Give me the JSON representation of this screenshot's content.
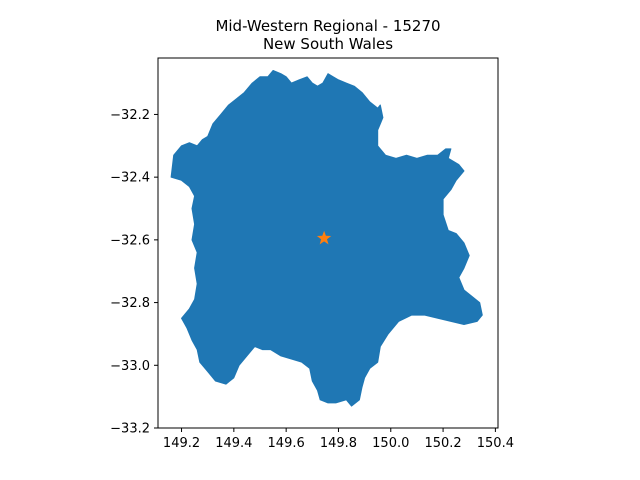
{
  "title": {
    "line1": "Mid-Western Regional - 15270",
    "line2": "New South Wales"
  },
  "colors": {
    "region_fill": "#1f77b4",
    "centroid_marker": "#ff7f0e",
    "axes": "#000000"
  },
  "map": {
    "x_ticks": [
      "149.2",
      "149.4",
      "149.6",
      "149.8",
      "150.0",
      "150.2",
      "150.4"
    ],
    "y_ticks": [
      "−32.2",
      "−32.4",
      "−32.6",
      "−32.8",
      "−33.0",
      "−33.2"
    ],
    "xlim": [
      149.11,
      150.41
    ],
    "ylim": [
      -33.2,
      -32.02
    ],
    "centroid": {
      "lon": 149.745,
      "lat": -32.595,
      "marker": "star"
    },
    "boundary": [
      [
        149.16,
        -32.4
      ],
      [
        149.17,
        -32.33
      ],
      [
        149.2,
        -32.3
      ],
      [
        149.23,
        -32.29
      ],
      [
        149.26,
        -32.3
      ],
      [
        149.28,
        -32.28
      ],
      [
        149.3,
        -32.27
      ],
      [
        149.32,
        -32.23
      ],
      [
        149.35,
        -32.2
      ],
      [
        149.38,
        -32.17
      ],
      [
        149.41,
        -32.15
      ],
      [
        149.44,
        -32.13
      ],
      [
        149.47,
        -32.1
      ],
      [
        149.5,
        -32.08
      ],
      [
        149.53,
        -32.08
      ],
      [
        149.55,
        -32.06
      ],
      [
        149.58,
        -32.07
      ],
      [
        149.6,
        -32.08
      ],
      [
        149.62,
        -32.1
      ],
      [
        149.65,
        -32.09
      ],
      [
        149.68,
        -32.08
      ],
      [
        149.7,
        -32.1
      ],
      [
        149.72,
        -32.11
      ],
      [
        149.74,
        -32.1
      ],
      [
        149.76,
        -32.07
      ],
      [
        149.78,
        -32.08
      ],
      [
        149.8,
        -32.09
      ],
      [
        149.83,
        -32.1
      ],
      [
        149.86,
        -32.11
      ],
      [
        149.89,
        -32.13
      ],
      [
        149.92,
        -32.16
      ],
      [
        149.95,
        -32.18
      ],
      [
        149.96,
        -32.17
      ],
      [
        149.97,
        -32.21
      ],
      [
        149.95,
        -32.25
      ],
      [
        149.95,
        -32.3
      ],
      [
        149.98,
        -32.33
      ],
      [
        150.02,
        -32.34
      ],
      [
        150.06,
        -32.33
      ],
      [
        150.1,
        -32.34
      ],
      [
        150.14,
        -32.33
      ],
      [
        150.18,
        -32.33
      ],
      [
        150.21,
        -32.31
      ],
      [
        150.23,
        -32.31
      ],
      [
        150.22,
        -32.34
      ],
      [
        150.26,
        -32.36
      ],
      [
        150.28,
        -32.38
      ],
      [
        150.25,
        -32.41
      ],
      [
        150.23,
        -32.44
      ],
      [
        150.2,
        -32.47
      ],
      [
        150.2,
        -32.52
      ],
      [
        150.22,
        -32.57
      ],
      [
        150.25,
        -32.58
      ],
      [
        150.28,
        -32.61
      ],
      [
        150.3,
        -32.65
      ],
      [
        150.28,
        -32.69
      ],
      [
        150.26,
        -32.72
      ],
      [
        150.28,
        -32.76
      ],
      [
        150.31,
        -32.78
      ],
      [
        150.34,
        -32.8
      ],
      [
        150.35,
        -32.84
      ],
      [
        150.33,
        -32.86
      ],
      [
        150.28,
        -32.87
      ],
      [
        150.23,
        -32.86
      ],
      [
        150.18,
        -32.85
      ],
      [
        150.13,
        -32.84
      ],
      [
        150.08,
        -32.84
      ],
      [
        150.03,
        -32.86
      ],
      [
        149.99,
        -32.9
      ],
      [
        149.96,
        -32.94
      ],
      [
        149.95,
        -32.99
      ],
      [
        149.92,
        -33.01
      ],
      [
        149.9,
        -33.04
      ],
      [
        149.89,
        -33.07
      ],
      [
        149.88,
        -33.11
      ],
      [
        149.85,
        -33.13
      ],
      [
        149.83,
        -33.11
      ],
      [
        149.79,
        -33.12
      ],
      [
        149.76,
        -33.12
      ],
      [
        149.73,
        -33.11
      ],
      [
        149.72,
        -33.08
      ],
      [
        149.7,
        -33.05
      ],
      [
        149.69,
        -33.01
      ],
      [
        149.66,
        -32.99
      ],
      [
        149.62,
        -32.98
      ],
      [
        149.58,
        -32.97
      ],
      [
        149.54,
        -32.95
      ],
      [
        149.51,
        -32.95
      ],
      [
        149.48,
        -32.94
      ],
      [
        149.45,
        -32.97
      ],
      [
        149.42,
        -33.0
      ],
      [
        149.4,
        -33.04
      ],
      [
        149.37,
        -33.06
      ],
      [
        149.33,
        -33.05
      ],
      [
        149.3,
        -33.02
      ],
      [
        149.27,
        -32.99
      ],
      [
        149.26,
        -32.95
      ],
      [
        149.24,
        -32.92
      ],
      [
        149.22,
        -32.88
      ],
      [
        149.2,
        -32.85
      ],
      [
        149.23,
        -32.82
      ],
      [
        149.25,
        -32.79
      ],
      [
        149.26,
        -32.74
      ],
      [
        149.25,
        -32.69
      ],
      [
        149.26,
        -32.64
      ],
      [
        149.24,
        -32.6
      ],
      [
        149.25,
        -32.55
      ],
      [
        149.24,
        -32.5
      ],
      [
        149.25,
        -32.46
      ],
      [
        149.23,
        -32.43
      ],
      [
        149.2,
        -32.41
      ]
    ]
  }
}
